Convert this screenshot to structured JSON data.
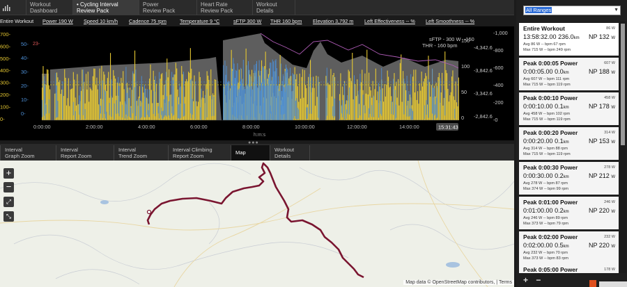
{
  "tabs": [
    {
      "line1": "Workout",
      "line2": "Dashboard"
    },
    {
      "line1": "• Cycling Interval",
      "line2": "Review Pack"
    },
    {
      "line1": "Power",
      "line2": "Review Pack"
    },
    {
      "line1": "Heart Rate",
      "line2": "Review Pack"
    },
    {
      "line1": "Workout",
      "line2": "Details"
    }
  ],
  "stats": {
    "range": "Entire Workout",
    "power": "Power  190 W",
    "speed": "Speed  10 km/h",
    "cadence": "Cadence  75 rpm",
    "temperature": "Temperature  9 °C",
    "sftp": "sFTP  300 W",
    "thr": "THR  160 bpm",
    "elevation": "Elevation  3,792 m",
    "left_effectiveness": "Left Effectiveness  -- %",
    "left_smoothness": "Left Smoothness  -- %"
  },
  "chart": {
    "sftp_label": "sFTP - 300 W",
    "thr_label": "THR - 160 bpm",
    "y1_ticks": [
      "700-",
      "600-",
      "500-",
      "400-",
      "300-",
      "200-",
      "100-",
      "0-"
    ],
    "y2_ticks": [
      "50-",
      "40-",
      "30-",
      "20-",
      "10-",
      "0-"
    ],
    "y3_ticks": [
      "150",
      "100",
      "50",
      "0"
    ],
    "y4_ticks": [
      "-1,000",
      "-800",
      "-600",
      "-400",
      "-200",
      "-0"
    ],
    "y5_ticks": [
      "-4,342.6",
      "-3,842.6",
      "-3,342.6",
      "-2,842.6"
    ],
    "low_left_tick": "23-",
    "small_left_tick": "-150",
    "x_ticks": [
      "0:00:00",
      "2:00:00",
      "4:00:00",
      "6:00:00",
      "8:00:00",
      "10:00:00",
      "12:00:00",
      "14:00:00"
    ],
    "x_label": "h:m:s",
    "cursor_time": "15:31:43",
    "colors": {
      "power": "#e6c832",
      "hr": "#4d8fd6",
      "elevation": "#9a9a9a",
      "cadence": "#b05cb8"
    }
  },
  "subtabs": [
    {
      "line1": "Interval",
      "line2": "Graph Zoom"
    },
    {
      "line1": "Interval",
      "line2": "Report Zoom"
    },
    {
      "line1": "Interval",
      "line2": "Trend Zoom"
    },
    {
      "line1": "Interval Climbing",
      "line2": "Report Zoom"
    },
    {
      "line1": "Map",
      "line2": ""
    },
    {
      "line1": "Workout",
      "line2": "Details"
    }
  ],
  "map": {
    "attribution": "Map data © OpenStreetMap contributors, |",
    "terms": "Terms",
    "zoom_in": "+",
    "zoom_out": "−",
    "route_color": "#7a1530"
  },
  "sidebar": {
    "range_value": "All Ranges",
    "items": [
      {
        "name": "Entire Workout",
        "watts": "86 W",
        "time": "13:58:32.00",
        "dist": "236.0",
        "dist_unit": "km",
        "np": "NP 132",
        "np_unit": "W",
        "line1": "Avg  86 W   -- bpm  67 rpm",
        "line2": "Max  715 W  -- bpm  249 rpm"
      },
      {
        "name": "Peak 0:00:05 Power",
        "watts": "607 W",
        "time": "0:00:05.00",
        "dist": "0.0",
        "dist_unit": "km",
        "np": "NP 188",
        "np_unit": "W",
        "line1": "Avg  607 W  -- bpm  111 rpm",
        "line2": "Max  715 W  -- bpm  119 rpm"
      },
      {
        "name": "Peak 0:00:10 Power",
        "watts": "458 W",
        "time": "0:00:10.00",
        "dist": "0.1",
        "dist_unit": "km",
        "np": "NP 178",
        "np_unit": "W",
        "line1": "Avg  458 W  -- bpm  102 rpm",
        "line2": "Max  715 W  -- bpm  119 rpm"
      },
      {
        "name": "Peak 0:00:20 Power",
        "watts": "314 W",
        "time": "0:00:20.00",
        "dist": "0.1",
        "dist_unit": "km",
        "np": "NP 153",
        "np_unit": "W",
        "line1": "Avg  314 W  -- bpm  88 rpm",
        "line2": "Max  715 W  -- bpm  119 rpm"
      },
      {
        "name": "Peak 0:00:30 Power",
        "watts": "278 W",
        "time": "0:00:30.00",
        "dist": "0.2",
        "dist_unit": "km",
        "np": "NP 212",
        "np_unit": "W",
        "line1": "Avg  278 W  -- bpm  87 rpm",
        "line2": "Max  374 W  -- bpm  99 rpm"
      },
      {
        "name": "Peak 0:01:00 Power",
        "watts": "246 W",
        "time": "0:01:00.00",
        "dist": "0.2",
        "dist_unit": "km",
        "np": "NP 220",
        "np_unit": "W",
        "line1": "Avg  246 W  -- bpm  89 rpm",
        "line2": "Max  373 W  -- bpm  79 rpm"
      },
      {
        "name": "Peak 0:02:00 Power",
        "watts": "232 W",
        "time": "0:02:00.00",
        "dist": "0.5",
        "dist_unit": "km",
        "np": "NP 220",
        "np_unit": "W",
        "line1": "Avg  232 W  -- bpm  70 rpm",
        "line2": "Max  373 W  -- bpm  83 rpm"
      },
      {
        "name": "Peak 0:05:00 Power",
        "watts": "178 W",
        "time": "",
        "dist": "",
        "dist_unit": "",
        "np": "",
        "np_unit": "",
        "line1": "",
        "line2": ""
      }
    ],
    "add_label": "+",
    "remove_label": "−"
  }
}
